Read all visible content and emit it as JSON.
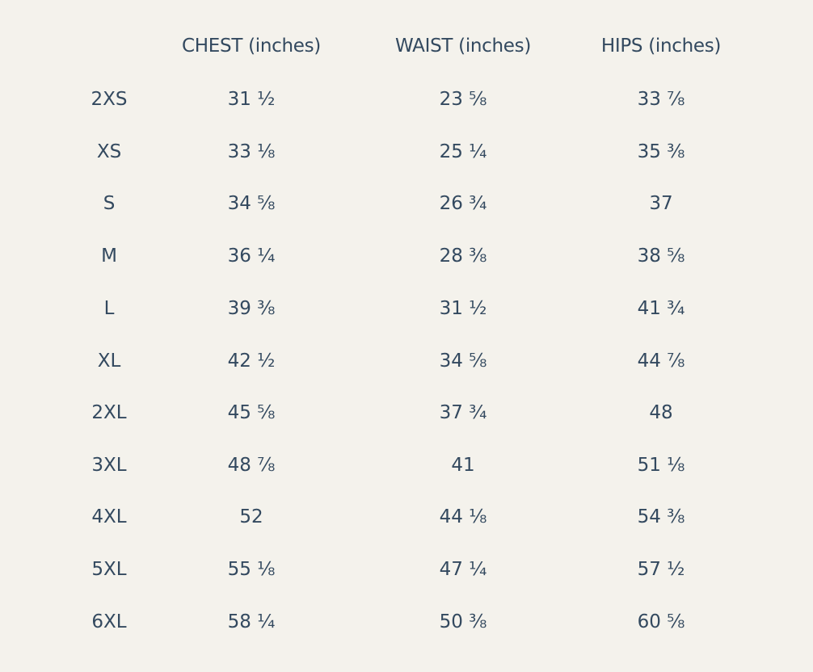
{
  "table": {
    "headers": {
      "size": "",
      "chest": "CHEST (inches)",
      "waist": "WAIST (inches)",
      "hips": "HIPS (inches)"
    },
    "rows": [
      {
        "size": "2XS",
        "chest": "31 ½",
        "waist": "23 ⅝",
        "hips": "33 ⅞"
      },
      {
        "size": "XS",
        "chest": "33 ⅛",
        "waist": "25 ¼",
        "hips": "35 ⅜"
      },
      {
        "size": "S",
        "chest": "34 ⅝",
        "waist": "26 ¾",
        "hips": "37"
      },
      {
        "size": "M",
        "chest": "36 ¼",
        "waist": "28 ⅜",
        "hips": "38 ⅝"
      },
      {
        "size": "L",
        "chest": "39 ⅜",
        "waist": "31 ½",
        "hips": "41 ¾"
      },
      {
        "size": "XL",
        "chest": "42 ½",
        "waist": "34 ⅝",
        "hips": "44 ⅞"
      },
      {
        "size": "2XL",
        "chest": "45 ⅝",
        "waist": "37 ¾",
        "hips": "48"
      },
      {
        "size": "3XL",
        "chest": "48 ⅞",
        "waist": "41",
        "hips": "51 ⅛"
      },
      {
        "size": "4XL",
        "chest": "52",
        "waist": "44 ⅛",
        "hips": "54 ⅜"
      },
      {
        "size": "5XL",
        "chest": "55 ⅛",
        "waist": "47 ¼",
        "hips": "57 ½"
      },
      {
        "size": "6XL",
        "chest": "58 ¼",
        "waist": "50 ⅜",
        "hips": "60 ⅝"
      }
    ]
  },
  "colors": {
    "background": "#f4f2ec",
    "text": "#33495f"
  }
}
